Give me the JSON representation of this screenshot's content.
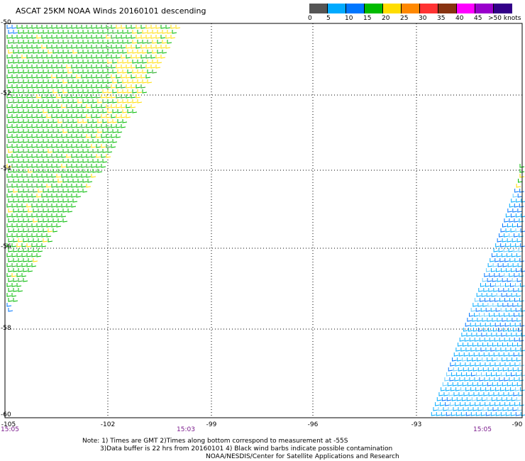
{
  "title": "ASCAT 25KM NOAA Winds 20160101 descending",
  "colorbar": {
    "colors": [
      "#555555",
      "#00aaff",
      "#0077ff",
      "#00bb00",
      "#ffdd00",
      "#ff8800",
      "#ff3333",
      "#883311",
      "#ff00ff",
      "#9900cc",
      "#330088"
    ],
    "labels": [
      "0",
      "5",
      "10",
      "15",
      "20",
      "25",
      "30",
      "35",
      "40",
      "45",
      ">50 knots"
    ]
  },
  "map": {
    "lat_labels": [
      "-50",
      "-52",
      "-54",
      "-56",
      "-58",
      "-60"
    ],
    "lon_labels": [
      "-105",
      "-102",
      "-99",
      "-96",
      "-93",
      "-90"
    ],
    "lat_range": [
      -60,
      -50
    ],
    "lon_range": [
      -105,
      -90
    ],
    "gridlines": true
  },
  "times": [
    "15:05",
    "15:03",
    "15:05"
  ],
  "notes": {
    "line1": "Note: 1) Times are GMT 2)Times along bottom correspond to measurement at -55S",
    "line2": "3)Data buffer is 22 hrs from 20160101 4) Black wind barbs indicate possible contamination",
    "line3": "NOAA/NESDIS/Center for Satellite Applications and Research"
  }
}
